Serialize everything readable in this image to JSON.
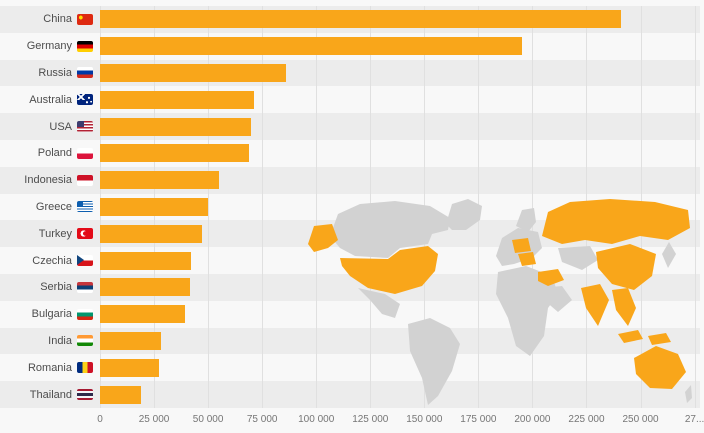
{
  "colors": {
    "bg": "#f8f8f8",
    "stripe": "#ececec",
    "bar": "#f9a61a",
    "grid": "#e0e0e0",
    "label": "#4d4d4d",
    "tick": "#767676",
    "map-land": "#d2d2d2",
    "map-hl": "#f9a61a"
  },
  "chart_data": {
    "type": "bar",
    "orientation": "horizontal",
    "title": "",
    "xlabel": "",
    "ylabel": "",
    "grid": true,
    "bar_color": "#f9a61a",
    "x_max": 277500,
    "categories": [
      "China",
      "Germany",
      "Russia",
      "Australia",
      "USA",
      "Poland",
      "Indonesia",
      "Greece",
      "Turkey",
      "Czechia",
      "Serbia",
      "Bulgaria",
      "India",
      "Romania",
      "Thailand"
    ],
    "values": [
      241000,
      195000,
      86000,
      71000,
      70000,
      69000,
      55000,
      50000,
      47000,
      42000,
      41500,
      39500,
      28000,
      27500,
      19000
    ],
    "flags": [
      "cn",
      "de",
      "ru",
      "au",
      "us",
      "pl",
      "id",
      "gr",
      "tr",
      "cz",
      "rs",
      "bg",
      "in",
      "ro",
      "th"
    ],
    "ticks": [
      {
        "label": "0",
        "value": 0
      },
      {
        "label": "25 000",
        "value": 25000
      },
      {
        "label": "50 000",
        "value": 50000
      },
      {
        "label": "75 000",
        "value": 75000
      },
      {
        "label": "100 000",
        "value": 100000
      },
      {
        "label": "125 000",
        "value": 125000
      },
      {
        "label": "150 000",
        "value": 150000
      },
      {
        "label": "175 000",
        "value": 175000
      },
      {
        "label": "200 000",
        "value": 200000
      },
      {
        "label": "225 000",
        "value": 225000
      },
      {
        "label": "250 000",
        "value": 250000
      },
      {
        "label": "27...",
        "value": 275000
      }
    ],
    "background_map": {
      "description": "world map watermark, listed countries highlighted in orange",
      "highlighted": [
        "USA",
        "Alaska",
        "Russia",
        "China",
        "India",
        "Southeast Asia",
        "Indonesia",
        "Australia",
        "Central Europe",
        "Balkans",
        "Turkey"
      ]
    }
  }
}
